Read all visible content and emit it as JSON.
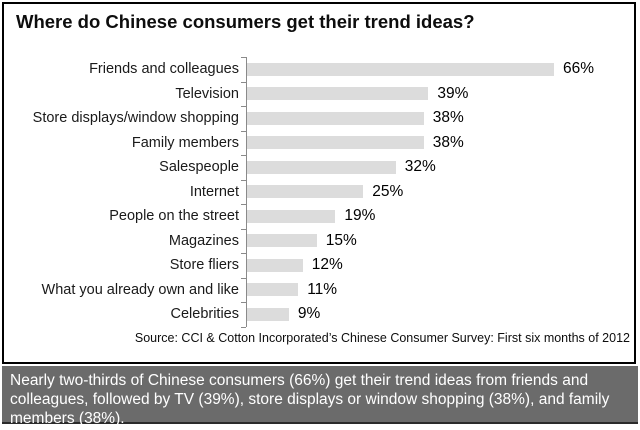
{
  "chart": {
    "title": "Where do Chinese consumers get their trend ideas?",
    "source": "Source: CCI & Cotton Incorporated’s Chinese Consumer Survey: First six months of 2012"
  },
  "chart_data": {
    "type": "bar",
    "orientation": "horizontal",
    "title": "Where do Chinese consumers get their trend ideas?",
    "categories": [
      "Friends and colleagues",
      "Television",
      "Store displays/window shopping",
      "Family members",
      "Salespeople",
      "Internet",
      "People on the street",
      "Magazines",
      "Store fliers",
      "What you already own and like",
      "Celebrities"
    ],
    "values": [
      66,
      39,
      38,
      38,
      32,
      25,
      19,
      15,
      12,
      11,
      9
    ],
    "value_suffix": "%",
    "xlabel": "",
    "ylabel": "",
    "xlim": [
      0,
      70
    ],
    "grid": false,
    "legend": false,
    "bar_color": "#dcdcdc",
    "axis_color": "#8a8a8a"
  },
  "footer": {
    "text": "Nearly two-thirds of Chinese consumers (66%) get their trend ideas from friends and colleagues, followed by TV (39%), store displays or window shopping (38%), and family members (38%).",
    "background": "#6b6b6b",
    "text_color": "#ffffff"
  }
}
